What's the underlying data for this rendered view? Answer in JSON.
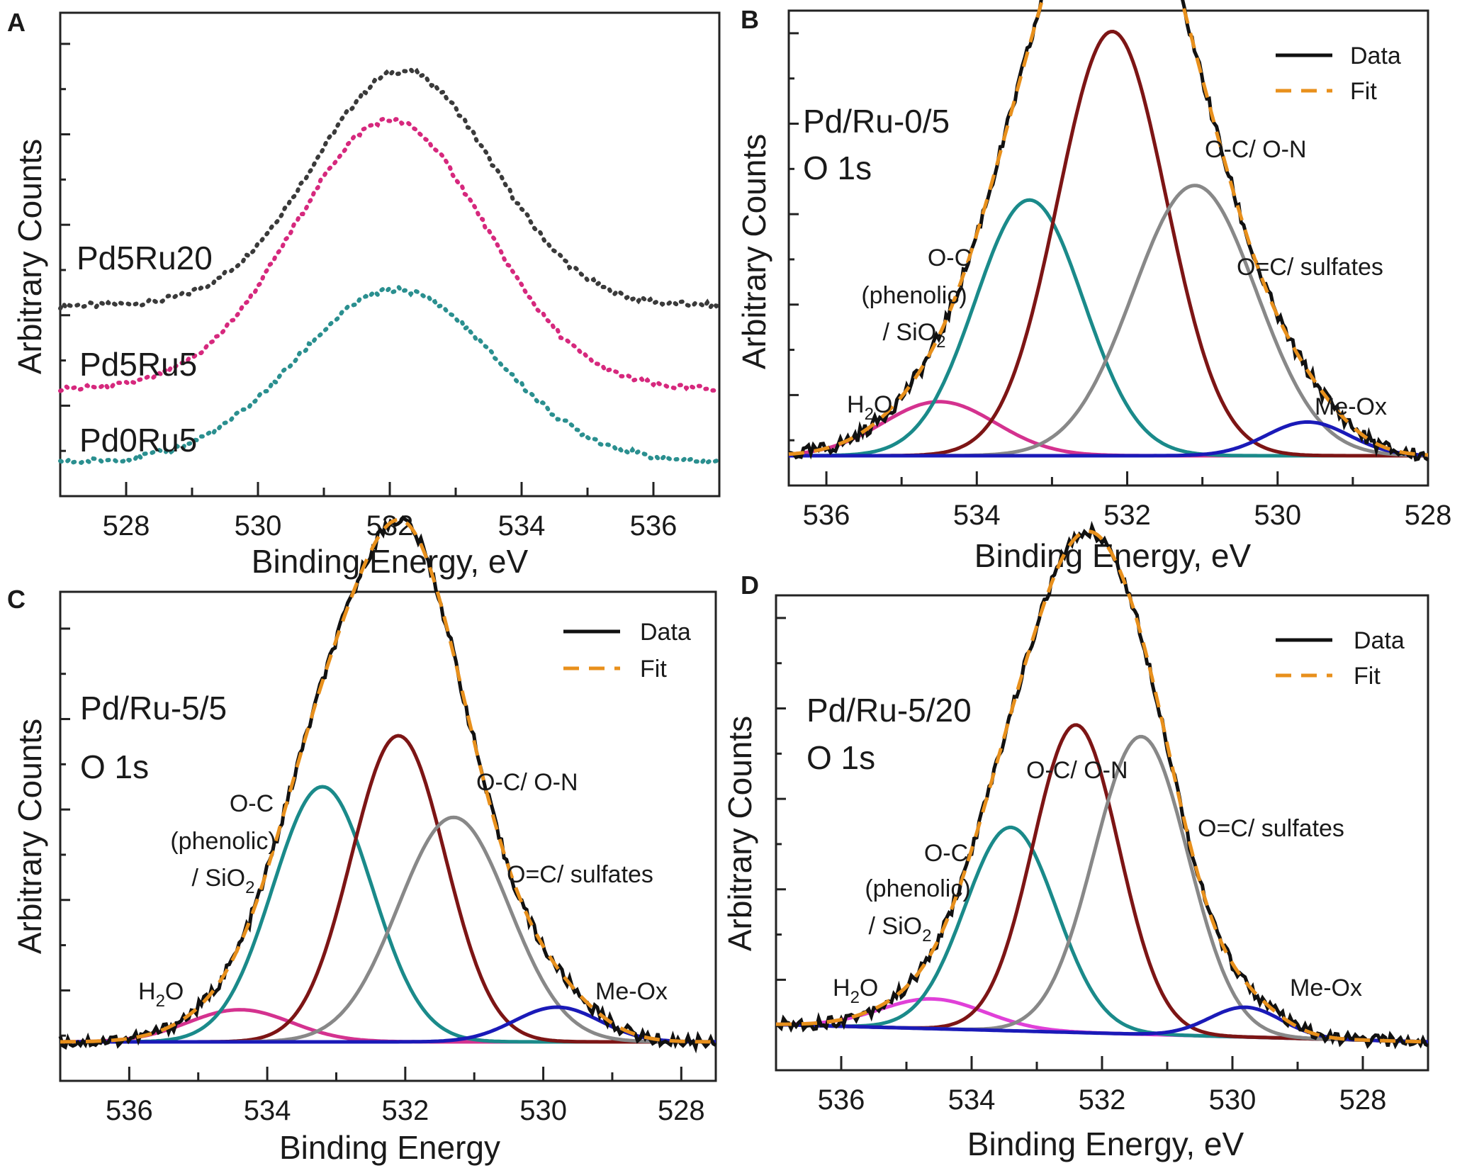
{
  "chart_data": [
    {
      "panel": "A",
      "type": "line",
      "xlabel": "Binding Energy, eV",
      "ylabel": "Arbitrary Counts",
      "xlim": [
        527,
        537
      ],
      "x_reversed": false,
      "xticks": [
        528,
        530,
        532,
        534,
        536
      ],
      "ylim": [
        0,
        1
      ],
      "series": [
        {
          "name": "Pd5Ru20",
          "label": "Pd5Ru20",
          "color": "#3a3a3a",
          "style": "dotted",
          "peak_x": 532.2,
          "peak_sigma": 1.35,
          "base": 0.37,
          "height": 0.51
        },
        {
          "name": "Pd5Ru5",
          "label": "Pd5Ru5",
          "color": "#d6287d",
          "style": "dotted",
          "peak_x": 532.0,
          "peak_sigma": 1.45,
          "base": 0.188,
          "height": 0.585
        },
        {
          "name": "Pd0Ru5",
          "label": "Pd0Ru5",
          "color": "#2a8f8f",
          "style": "dotted",
          "peak_x": 532.1,
          "peak_sigma": 1.5,
          "base": 0.03,
          "height": 0.375
        }
      ]
    },
    {
      "panel": "B",
      "type": "line",
      "sample": "Pd/Ru-0/5",
      "region": "O 1s",
      "xlabel": "Binding Energy, eV",
      "ylabel": "Arbitrary Counts",
      "xlim": [
        536.5,
        528
      ],
      "x_reversed": true,
      "xticks": [
        536,
        534,
        532,
        530,
        528
      ],
      "ylim": [
        0,
        1
      ],
      "legend": [
        "Data",
        "Fit"
      ],
      "components": [
        {
          "name": "H2O",
          "center": 534.5,
          "sigma": 0.75,
          "height": 0.093,
          "color": "#d4328f"
        },
        {
          "name": "O-C (phenolic) / SiO2",
          "center": 533.3,
          "sigma": 0.72,
          "height": 0.44,
          "color": "#1a8a8a"
        },
        {
          "name": "O-C/ O-N",
          "center": 532.2,
          "sigma": 0.72,
          "height": 0.73,
          "color": "#7d1515"
        },
        {
          "name": "O=C/ sulfates",
          "center": 531.1,
          "sigma": 0.82,
          "height": 0.465,
          "color": "#888888"
        },
        {
          "name": "Me-Ox",
          "center": 529.6,
          "sigma": 0.55,
          "height": 0.058,
          "color": "#1a1ab8"
        }
      ],
      "annotations": [
        "H2O",
        "O-C",
        "(phenolic)",
        "/ SiO2",
        "O-C/ O-N",
        "O=C/ sulfates",
        "Me-Ox"
      ]
    },
    {
      "panel": "C",
      "type": "line",
      "sample": "Pd/Ru-5/5",
      "region": "O 1s",
      "xlabel": "Binding Energy",
      "ylabel": "Arbitrary Counts",
      "xlim": [
        537,
        527.5
      ],
      "x_reversed": true,
      "xticks": [
        536,
        534,
        532,
        530,
        528
      ],
      "ylim": [
        0,
        1
      ],
      "legend": [
        "Data",
        "Fit"
      ],
      "components": [
        {
          "name": "H2O",
          "center": 534.4,
          "sigma": 0.75,
          "height": 0.063,
          "color": "#d4328f"
        },
        {
          "name": "O-C (phenolic) / SiO2",
          "center": 533.2,
          "sigma": 0.72,
          "height": 0.5,
          "color": "#1a8a8a"
        },
        {
          "name": "O-C/ O-N",
          "center": 532.1,
          "sigma": 0.68,
          "height": 0.6,
          "color": "#7d1515"
        },
        {
          "name": "O=C/ sulfates",
          "center": 531.3,
          "sigma": 0.8,
          "height": 0.44,
          "color": "#888888"
        },
        {
          "name": "Me-Ox",
          "center": 529.8,
          "sigma": 0.62,
          "height": 0.068,
          "color": "#1a1ab8"
        }
      ],
      "annotations": [
        "H2O",
        "O-C",
        "(phenolic)",
        "/ SiO2",
        "O-C/ O-N",
        "O=C/ sulfates",
        "Me-Ox"
      ]
    },
    {
      "panel": "D",
      "type": "line",
      "sample": "Pd/Ru-5/20",
      "region": "O 1s",
      "xlabel": "Binding Energy, eV",
      "ylabel": "Arbitrary Counts",
      "xlim": [
        537,
        527
      ],
      "x_reversed": true,
      "xticks": [
        536,
        534,
        532,
        530,
        528
      ],
      "ylim": [
        0,
        1
      ],
      "legend": [
        "Data",
        "Fit"
      ],
      "baseline": {
        "left": 0.035,
        "right": 0.0
      },
      "components": [
        {
          "name": "H2O",
          "center": 534.6,
          "sigma": 0.8,
          "height": 0.06,
          "color": "#e040d8"
        },
        {
          "name": "O-C (phenolic) / SiO2",
          "center": 533.4,
          "sigma": 0.7,
          "height": 0.41,
          "color": "#1a8a8a"
        },
        {
          "name": "O-C/ O-N",
          "center": 532.4,
          "sigma": 0.66,
          "height": 0.62,
          "color": "#7d1515"
        },
        {
          "name": "O=C/ sulfates",
          "center": 531.4,
          "sigma": 0.72,
          "height": 0.6,
          "color": "#888888"
        },
        {
          "name": "Me-Ox",
          "center": 529.8,
          "sigma": 0.55,
          "height": 0.06,
          "color": "#1a1ab8"
        }
      ],
      "annotations": [
        "H2O",
        "O-C",
        "(phenolic)",
        "/ SiO2",
        "O-C/ O-N",
        "O=C/ sulfates",
        "Me-Ox"
      ]
    }
  ],
  "colors": {
    "data_line": "#111111",
    "fit_line": "#e8901c",
    "axis": "#222222"
  }
}
